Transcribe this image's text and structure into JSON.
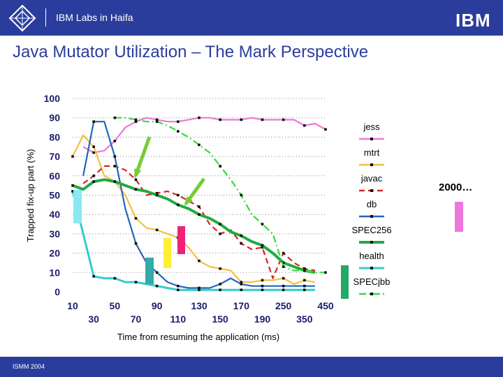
{
  "header": {
    "lab_name": "IBM Labs in Haifa",
    "brand": "IBM",
    "brand_color": "#2b3d9c",
    "logo_icon": "diamond-grid-icon"
  },
  "slide": {
    "title": "Java Mutator Utilization – The Mark Perspective",
    "footer": "ISMM 2004",
    "side_note": "2000…"
  },
  "chart_data": {
    "type": "line",
    "ylabel": "Trapped fix-up part (%)",
    "xlabel": "Time from resuming the application (ms)",
    "ylim": [
      0,
      100
    ],
    "yticks": [
      0,
      10,
      20,
      30,
      40,
      50,
      60,
      70,
      80,
      90,
      100
    ],
    "x": [
      10,
      20,
      30,
      40,
      50,
      60,
      70,
      80,
      90,
      100,
      110,
      120,
      130,
      140,
      150,
      160,
      170,
      180,
      190,
      200,
      250,
      300,
      350,
      400,
      450
    ],
    "xtick_labels_row1": [
      "10",
      "50",
      "90",
      "130",
      "170",
      "250",
      "450"
    ],
    "xtick_labels_row2": [
      "30",
      "70",
      "110",
      "150",
      "190",
      "350"
    ],
    "grid": "horizontal-dotted",
    "legend_position": "right",
    "series": [
      {
        "name": "jess",
        "color": "#ee77dd",
        "dash": "solid",
        "values": [
          null,
          75,
          72,
          73,
          78,
          85,
          88,
          90,
          89,
          88,
          88,
          89,
          90,
          90,
          89,
          89,
          89,
          90,
          89,
          89,
          89,
          89,
          86,
          87,
          84
        ]
      },
      {
        "name": "mtrt",
        "color": "#f0c040",
        "dash": "solid",
        "values": [
          70,
          81,
          75,
          60,
          57,
          50,
          38,
          33,
          32,
          30,
          28,
          23,
          16,
          13,
          12,
          11,
          5,
          5,
          6,
          6,
          7,
          4,
          6,
          5,
          null
        ]
      },
      {
        "name": "javac",
        "color": "#dd2222",
        "dash": "dashed",
        "values": [
          null,
          56,
          60,
          65,
          65,
          63,
          58,
          50,
          51,
          52,
          50,
          47,
          44,
          35,
          30,
          32,
          25,
          22,
          23,
          7,
          20,
          15,
          12,
          11,
          null
        ]
      },
      {
        "name": "db",
        "color": "#2266bb",
        "dash": "solid",
        "values": [
          null,
          60,
          88,
          88,
          70,
          43,
          25,
          15,
          10,
          5,
          3,
          2,
          2,
          2,
          4,
          7,
          4,
          3,
          3,
          3,
          3,
          3,
          3,
          3,
          null
        ]
      },
      {
        "name": "SPEC256",
        "color": "#22aa44",
        "dash": "solid",
        "width": 4,
        "values": [
          55,
          53,
          57,
          58,
          57,
          55,
          53,
          52,
          50,
          48,
          45,
          43,
          40,
          38,
          35,
          31,
          29,
          26,
          24,
          20,
          15,
          13,
          11,
          10,
          null
        ]
      },
      {
        "name": "health",
        "color": "#33cccc",
        "dash": "solid",
        "width": 3,
        "values": [
          52,
          30,
          8,
          7,
          7,
          5,
          5,
          4,
          3,
          2,
          1,
          1,
          1,
          1,
          1,
          1,
          1,
          1,
          1,
          1,
          1,
          1,
          1,
          1,
          null
        ]
      },
      {
        "name": "SPECjbb",
        "color": "#33dd33",
        "dash": "dashdot",
        "values": [
          null,
          null,
          null,
          null,
          90,
          90,
          89,
          88,
          88,
          86,
          83,
          80,
          76,
          72,
          65,
          58,
          50,
          40,
          35,
          30,
          13,
          11,
          11,
          10,
          10
        ]
      }
    ],
    "annotations": {
      "arrows": [
        "green-arrow",
        "green-arrow"
      ],
      "colored_bars": [
        {
          "color": "#8ae8f0"
        },
        {
          "color": "#33aaaa"
        },
        {
          "color": "#ffee33"
        },
        {
          "color": "#ee2277"
        },
        {
          "color": "#22aa66"
        }
      ]
    }
  }
}
